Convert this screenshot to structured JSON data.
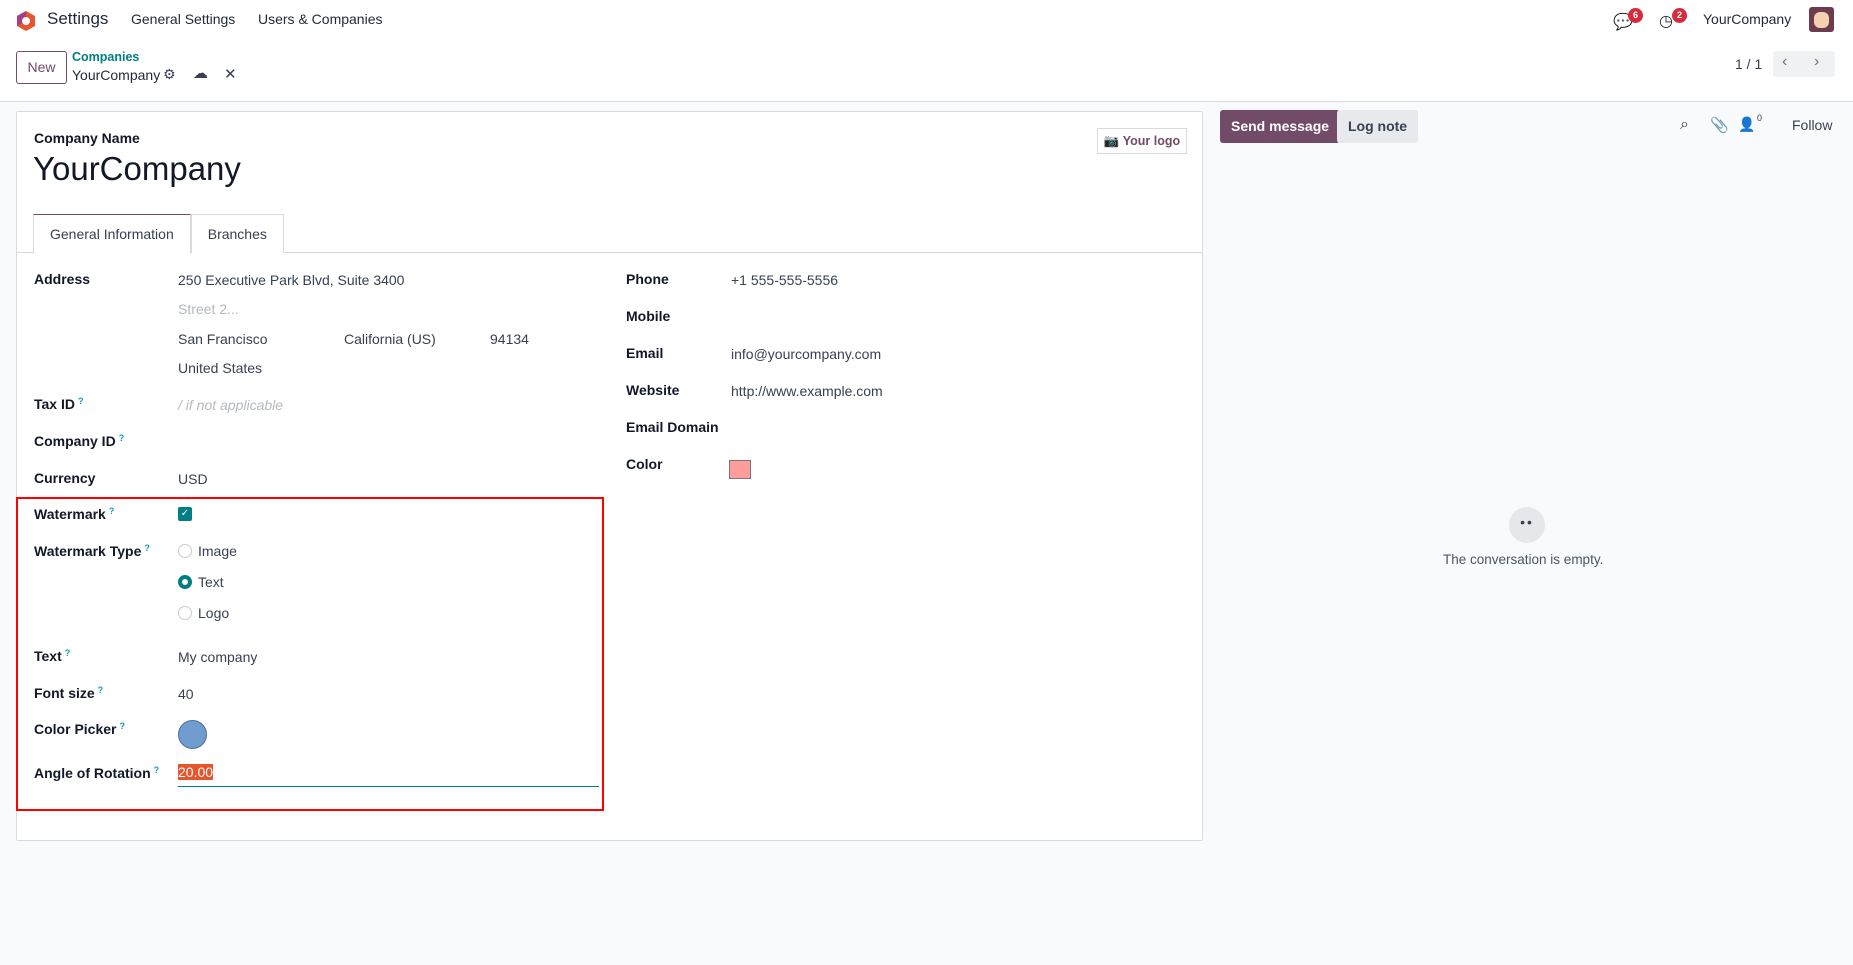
{
  "navbar": {
    "app_name": "Settings",
    "menus": [
      "General Settings",
      "Users & Companies"
    ],
    "messages_count": "6",
    "activities_count": "2",
    "company": "YourCompany"
  },
  "control_panel": {
    "new_label": "New",
    "breadcrumb_parent": "Companies",
    "breadcrumb_current": "YourCompany",
    "pager": "1 / 1"
  },
  "form": {
    "company_name_label": "Company Name",
    "company_name": "YourCompany",
    "logo_button": "Your logo",
    "tabs": [
      "General Information",
      "Branches"
    ],
    "address_label": "Address",
    "street": "250 Executive Park Blvd, Suite 3400",
    "street2_placeholder": "Street 2...",
    "city": "San Francisco",
    "state": "California (US)",
    "zip": "94134",
    "country": "United States",
    "tax_id_label": "Tax ID",
    "tax_id_placeholder": "/ if not applicable",
    "company_id_label": "Company ID",
    "currency_label": "Currency",
    "currency": "USD",
    "watermark_label": "Watermark",
    "watermark_checked": true,
    "watermark_type_label": "Watermark Type",
    "watermark_type_options": [
      "Image",
      "Text",
      "Logo"
    ],
    "watermark_type_selected": "Text",
    "text_label": "Text",
    "text_value": "My company",
    "font_size_label": "Font size",
    "font_size": "40",
    "color_picker_label": "Color Picker",
    "color_picker_value": "#719ccf",
    "angle_label": "Angle of Rotation",
    "angle_value": "20.00",
    "phone_label": "Phone",
    "phone": "+1 555-555-5556",
    "mobile_label": "Mobile",
    "email_label": "Email",
    "email": "info@yourcompany.com",
    "website_label": "Website",
    "website": "http://www.example.com",
    "email_domain_label": "Email Domain",
    "color_label": "Color",
    "color_value": "#ff9c9c"
  },
  "chatter": {
    "send_message": "Send message",
    "log_note": "Log note",
    "followers_count": "0",
    "follow": "Follow",
    "empty_text": "The conversation is empty."
  },
  "colors": {
    "brand": "#714b67",
    "accent": "#017e84",
    "highlight": "#e53935"
  }
}
